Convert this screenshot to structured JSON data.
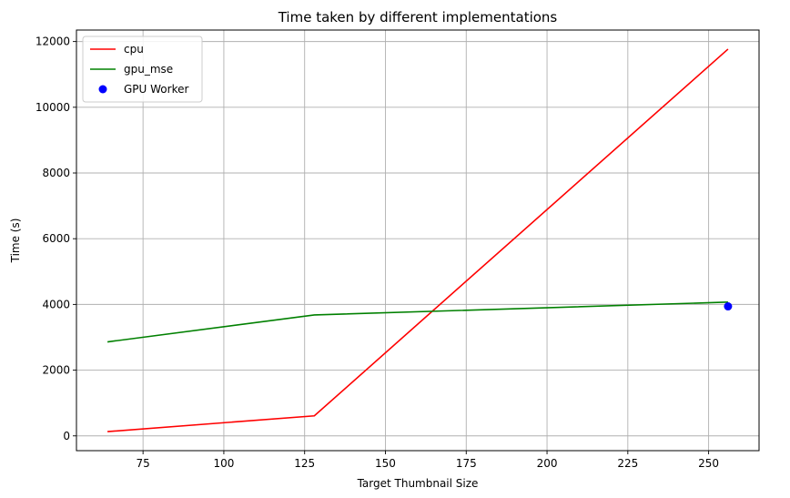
{
  "chart_data": {
    "type": "line",
    "title": "Time taken by different implementations",
    "xlabel": "Target Thumbnail Size",
    "ylabel": "Time (s)",
    "xlim": [
      54.4,
      265.6
    ],
    "ylim": [
      -450,
      12350
    ],
    "xticks": [
      75,
      100,
      125,
      150,
      175,
      200,
      225,
      250
    ],
    "yticks": [
      0,
      2000,
      4000,
      6000,
      8000,
      10000,
      12000
    ],
    "grid": true,
    "legend_position": "top-left",
    "series": [
      {
        "name": "cpu",
        "kind": "line",
        "color": "#ff0000",
        "x": [
          64,
          128,
          256
        ],
        "y": [
          130,
          610,
          11770
        ]
      },
      {
        "name": "gpu_mse",
        "kind": "line",
        "color": "#008000",
        "x": [
          64,
          128,
          256
        ],
        "y": [
          2860,
          3680,
          4070
        ]
      },
      {
        "name": "GPU Worker",
        "kind": "scatter",
        "color": "#0000ff",
        "x": [
          256
        ],
        "y": [
          3940
        ]
      }
    ]
  }
}
